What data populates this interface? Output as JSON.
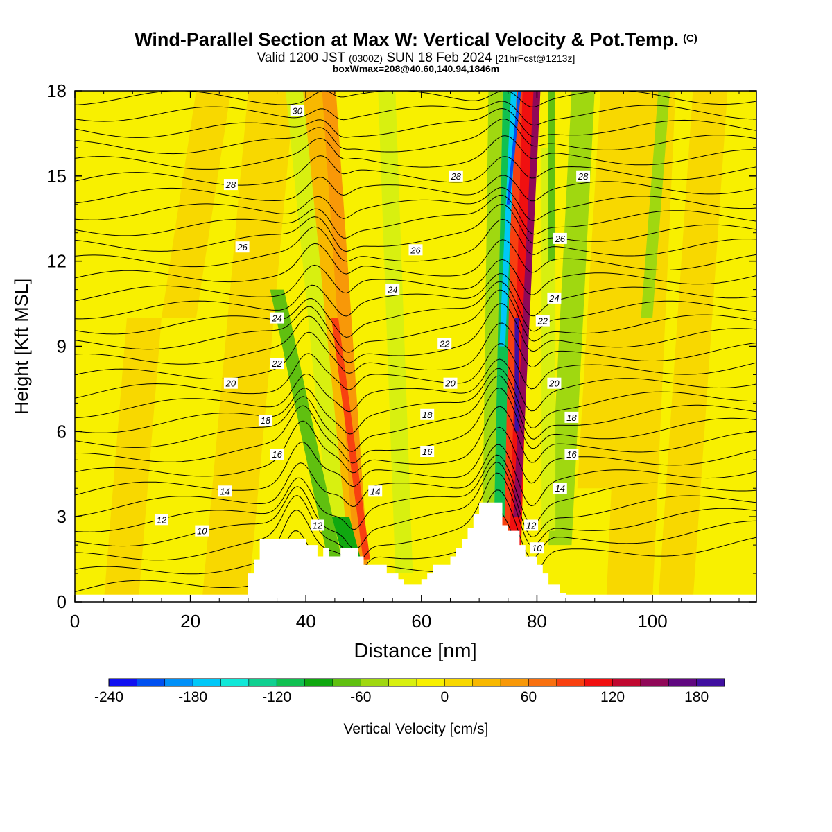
{
  "title": {
    "main": "Wind-Parallel Section at Max W: Vertical Velocity & Pot.Temp.",
    "copyright": "(C)",
    "valid_prefix": "Valid 1200 JST",
    "valid_utc": "(0300Z)",
    "valid_date": "SUN 18 Feb 2024",
    "forecast": "[21hrFcst@1213z]",
    "box_info": "boxWmax=208@40.60,140.94,1846m"
  },
  "chart_data": {
    "type": "heatmap",
    "xlabel": "Distance [nm]",
    "ylabel": "Height [Kft MSL]",
    "xlim": [
      0,
      118
    ],
    "ylim": [
      0,
      18
    ],
    "xticks": [
      0,
      20,
      40,
      60,
      80,
      100
    ],
    "yticks": [
      0,
      3,
      6,
      9,
      12,
      15,
      18
    ],
    "colorbar": {
      "label": "Vertical Velocity [cm/s]",
      "ticks": [
        -240,
        -180,
        -120,
        -60,
        0,
        60,
        120,
        180
      ],
      "range": [
        -240,
        200
      ],
      "step": 20,
      "colors": [
        "#1010f0",
        "#0050f0",
        "#0090f8",
        "#00c8f8",
        "#10e8d8",
        "#10d090",
        "#10c050",
        "#10a810",
        "#60c010",
        "#a0d810",
        "#d8f010",
        "#f8f000",
        "#f8d800",
        "#f8b800",
        "#f89808",
        "#f87010",
        "#f84010",
        "#f01010",
        "#c00830",
        "#900858",
        "#600880",
        "#4010a0"
      ]
    },
    "terrain": [
      [
        0,
        0.25
      ],
      [
        30,
        0.25
      ],
      [
        30,
        1
      ],
      [
        31,
        1
      ],
      [
        31,
        1.5
      ],
      [
        32,
        1.5
      ],
      [
        32,
        2.2
      ],
      [
        40,
        2.2
      ],
      [
        40,
        2
      ],
      [
        42,
        2
      ],
      [
        42,
        1.6
      ],
      [
        43,
        1.6
      ],
      [
        43,
        1.9
      ],
      [
        44,
        1.9
      ],
      [
        44,
        1.6
      ],
      [
        46,
        1.6
      ],
      [
        46,
        1.9
      ],
      [
        49,
        1.9
      ],
      [
        49,
        1.6
      ],
      [
        50,
        1.6
      ],
      [
        50,
        1.3
      ],
      [
        54,
        1.3
      ],
      [
        54,
        1
      ],
      [
        56,
        1
      ],
      [
        56,
        0.8
      ],
      [
        57,
        0.8
      ],
      [
        57,
        0.6
      ],
      [
        60,
        0.6
      ],
      [
        60,
        0.8
      ],
      [
        61,
        0.8
      ],
      [
        61,
        1
      ],
      [
        62,
        1
      ],
      [
        62,
        1.3
      ],
      [
        65,
        1.3
      ],
      [
        65,
        1.6
      ],
      [
        66,
        1.6
      ],
      [
        66,
        1.9
      ],
      [
        67,
        1.9
      ],
      [
        67,
        2.2
      ],
      [
        68,
        2.2
      ],
      [
        68,
        2.6
      ],
      [
        69,
        2.6
      ],
      [
        69,
        3.1
      ],
      [
        70,
        3.1
      ],
      [
        70,
        3.5
      ],
      [
        74,
        3.5
      ],
      [
        74,
        2.7
      ],
      [
        75,
        2.7
      ],
      [
        75,
        2.5
      ],
      [
        77,
        2.5
      ],
      [
        77,
        2
      ],
      [
        78,
        2
      ],
      [
        78,
        1.6
      ],
      [
        80,
        1.6
      ],
      [
        80,
        1.3
      ],
      [
        81,
        1.3
      ],
      [
        81,
        1
      ],
      [
        82,
        1
      ],
      [
        82,
        0.6
      ],
      [
        84,
        0.6
      ],
      [
        84,
        0.3
      ],
      [
        85,
        0.3
      ],
      [
        85,
        0.25
      ],
      [
        118,
        0.25
      ]
    ],
    "isentrope_labels": [
      {
        "text": "30",
        "x": 38.5,
        "y": 17.3
      },
      {
        "text": "28",
        "x": 27,
        "y": 14.7
      },
      {
        "text": "28",
        "x": 66,
        "y": 15
      },
      {
        "text": "28",
        "x": 88,
        "y": 15
      },
      {
        "text": "26",
        "x": 29,
        "y": 12.5
      },
      {
        "text": "26",
        "x": 59,
        "y": 12.4
      },
      {
        "text": "26",
        "x": 84,
        "y": 12.8
      },
      {
        "text": "24",
        "x": 55,
        "y": 11
      },
      {
        "text": "24",
        "x": 35,
        "y": 10
      },
      {
        "text": "24",
        "x": 83,
        "y": 10.7
      },
      {
        "text": "22",
        "x": 64,
        "y": 9.1
      },
      {
        "text": "22",
        "x": 35,
        "y": 8.4
      },
      {
        "text": "22",
        "x": 81,
        "y": 9.9
      },
      {
        "text": "20",
        "x": 27,
        "y": 7.7
      },
      {
        "text": "20",
        "x": 65,
        "y": 7.7
      },
      {
        "text": "20",
        "x": 83,
        "y": 7.7
      },
      {
        "text": "18",
        "x": 33,
        "y": 6.4
      },
      {
        "text": "18",
        "x": 61,
        "y": 6.6
      },
      {
        "text": "18",
        "x": 86,
        "y": 6.5
      },
      {
        "text": "16",
        "x": 35,
        "y": 5.2
      },
      {
        "text": "16",
        "x": 61,
        "y": 5.3
      },
      {
        "text": "16",
        "x": 86,
        "y": 5.2
      },
      {
        "text": "14",
        "x": 26,
        "y": 3.9
      },
      {
        "text": "14",
        "x": 52,
        "y": 3.9
      },
      {
        "text": "14",
        "x": 84,
        "y": 4
      },
      {
        "text": "12",
        "x": 15,
        "y": 2.9
      },
      {
        "text": "12",
        "x": 42,
        "y": 2.7
      },
      {
        "text": "12",
        "x": 79,
        "y": 2.7
      },
      {
        "text": "10",
        "x": 22,
        "y": 2.5
      },
      {
        "text": "10",
        "x": 80,
        "y": 1.9
      }
    ]
  }
}
